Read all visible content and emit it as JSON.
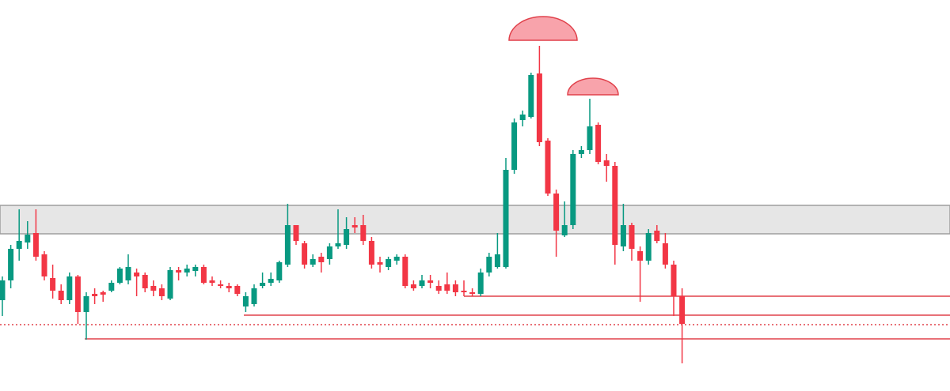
{
  "chart_data": {
    "type": "candlestick",
    "ylim": [
      0,
      495
    ],
    "up_color": "#089981",
    "down_color": "#f23645",
    "level_color": "#e0404a",
    "zone_color": "#e6e6e6",
    "zone": [
      199,
      235
    ],
    "levels": [
      120,
      96,
      66
    ],
    "dotted_level": 84,
    "open": [
      115,
      140,
      180,
      188,
      200,
      173,
      143,
      127,
      115,
      145,
      100,
      123,
      125,
      127,
      137,
      140,
      150,
      147,
      133,
      130,
      117,
      153,
      150,
      152,
      157,
      140,
      135,
      133,
      133,
      107,
      110,
      133,
      137,
      140,
      160,
      210,
      187,
      160,
      170,
      167,
      183,
      185,
      210,
      210,
      190,
      163,
      157,
      165,
      170,
      135,
      133,
      140,
      133,
      135,
      135,
      127,
      125,
      123,
      150,
      157,
      157,
      280,
      343,
      347,
      402,
      317,
      250,
      197,
      210,
      300,
      305,
      337,
      292,
      285,
      183,
      210,
      177,
      165,
      203,
      187,
      160,
      120
    ],
    "high": [
      145,
      185,
      230,
      215,
      230,
      177,
      160,
      135,
      150,
      147,
      125,
      130,
      127,
      140,
      157,
      173,
      155,
      150,
      140,
      135,
      157,
      157,
      160,
      160,
      160,
      145,
      140,
      137,
      135,
      125,
      135,
      150,
      150,
      165,
      237,
      210,
      190,
      173,
      175,
      187,
      230,
      220,
      220,
      223,
      195,
      170,
      170,
      173,
      173,
      140,
      147,
      147,
      140,
      150,
      140,
      140,
      130,
      155,
      175,
      200,
      295,
      345,
      355,
      403,
      437,
      320,
      255,
      240,
      305,
      310,
      370,
      340,
      300,
      290,
      237,
      213,
      183,
      205,
      210,
      200,
      165,
      130
    ],
    "low": [
      95,
      130,
      165,
      180,
      165,
      140,
      117,
      110,
      110,
      85,
      65,
      110,
      113,
      125,
      135,
      135,
      120,
      125,
      120,
      115,
      115,
      140,
      145,
      145,
      135,
      133,
      130,
      125,
      120,
      100,
      107,
      130,
      133,
      137,
      157,
      185,
      155,
      157,
      150,
      160,
      180,
      180,
      200,
      185,
      155,
      150,
      153,
      160,
      130,
      127,
      130,
      130,
      123,
      123,
      120,
      120,
      120,
      120,
      145,
      155,
      155,
      275,
      335,
      345,
      310,
      247,
      170,
      195,
      205,
      295,
      300,
      287,
      265,
      160,
      177,
      165,
      113,
      160,
      187,
      155,
      95,
      35
    ],
    "close": [
      140,
      180,
      190,
      198,
      170,
      145,
      127,
      115,
      145,
      100,
      120,
      120,
      122,
      137,
      155,
      157,
      145,
      130,
      127,
      120,
      153,
      150,
      155,
      157,
      137,
      137,
      133,
      130,
      123,
      120,
      130,
      137,
      142,
      163,
      210,
      190,
      160,
      167,
      163,
      183,
      187,
      205,
      207,
      190,
      160,
      160,
      167,
      170,
      133,
      130,
      140,
      137,
      127,
      127,
      125,
      125,
      123,
      150,
      170,
      173,
      280,
      340,
      350,
      400,
      315,
      250,
      203,
      210,
      300,
      305,
      335,
      290,
      285,
      185,
      210,
      180,
      165,
      200,
      190,
      160,
      120,
      85
    ]
  }
}
